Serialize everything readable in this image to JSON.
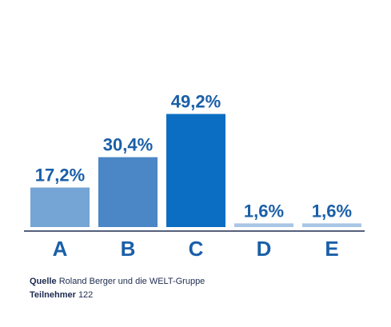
{
  "chart_data": {
    "type": "bar",
    "categories": [
      "A",
      "B",
      "C",
      "D",
      "E"
    ],
    "values": [
      17.2,
      30.4,
      49.2,
      1.6,
      1.6
    ],
    "value_labels": [
      "17,2%",
      "30,4%",
      "49,2%",
      "1,6%",
      "1,6%"
    ],
    "colors": [
      "#74a5d5",
      "#4b86c6",
      "#0c6ec2",
      "#a9c6e6",
      "#a9c6e6"
    ],
    "label_color": "#1a5fa8",
    "ylim": [
      0,
      50
    ],
    "grid": false,
    "legend": "none"
  },
  "footer": {
    "source_label": "Quelle",
    "source_text": "Roland Berger und die WELT-Gruppe",
    "participants_label": "Teilnehmer",
    "participants_text": "122"
  }
}
